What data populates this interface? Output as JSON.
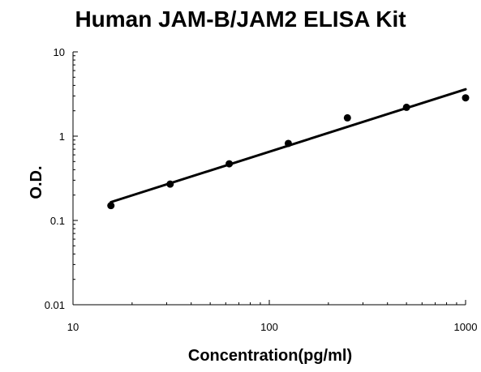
{
  "chart_data": {
    "type": "scatter",
    "title": "Human JAM-B/JAM2 ELISA Kit",
    "xlabel": "Concentration(pg/ml)",
    "ylabel": "O.D.",
    "x_scale": "log",
    "y_scale": "log",
    "xlim": [
      10,
      1000
    ],
    "ylim": [
      0.01,
      10
    ],
    "x_tick_labels": [
      "10",
      "100",
      "1000"
    ],
    "y_tick_labels": [
      "10",
      "1",
      "0.1",
      "0.01"
    ],
    "grid": false,
    "legend": "none",
    "series": [
      {
        "x": [
          15.6,
          31.25,
          62.5,
          125,
          250,
          500,
          1000
        ],
        "y": [
          0.15,
          0.27,
          0.47,
          0.82,
          1.65,
          2.2,
          2.85
        ]
      }
    ],
    "trendline": {
      "x": [
        15.6,
        1000
      ],
      "y": [
        0.165,
        3.6
      ]
    },
    "colors": {
      "points": "#000000",
      "line": "#000000",
      "axis": "#000000"
    }
  }
}
